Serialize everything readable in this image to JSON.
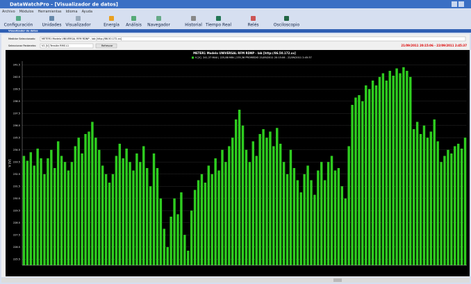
{
  "window": {
    "title": "DataWatchPro - [Visualizador de datos]",
    "menu": [
      "Archivo",
      "Módulos",
      "Herramientas",
      "Idioma",
      "Ayuda"
    ],
    "toolbar": [
      "Configuración",
      "Unidades",
      "Visualizador",
      "Energía",
      "Análisis",
      "Navegador",
      "Historial",
      "Tiempo Real",
      "Relés",
      "Osciloscopio"
    ]
  },
  "panel": {
    "title": "Visualizador de datos",
    "meter_label": "Medidor Seleccionado",
    "meter_value": "METER1 Modelo UNIVERSAL RFM RDNP - lab [http://86.50.172.xx]",
    "param_label": "Seleccionar Parámetro",
    "param_value": "V1 [V] Tensión RMS L1",
    "refresh": "Refrescar",
    "range": "21/09/2011 20:15:06 - 22/09/2011 2:45:37"
  },
  "chart_data": {
    "type": "bar",
    "title": "METER1 Modelo UNIVERSAL RFM RDNP - lab [http://86.50.172.xx]",
    "subtitle": "241,37 MAX | 225,88 MIN | 235,36 PROMEDIO 21/09/2011 20:15:06 - 22/09/2011 2:45:37",
    "ylabel": "V [V]",
    "series": [
      {
        "name": "V [V]",
        "color": "#2ecc1f",
        "values": [
          234.0,
          233.6,
          234.3,
          233.2,
          234.6,
          233.8,
          232.5,
          233.8,
          234.5,
          233.0,
          235.2,
          234.0,
          233.5,
          232.8,
          233.5,
          234.8,
          235.5,
          234.2,
          235.8,
          236.0,
          236.8,
          235.5,
          234.5,
          233.2,
          232.5,
          231.8,
          232.5,
          234.0,
          235.0,
          233.8,
          234.6,
          233.5,
          232.8,
          234.2,
          233.5,
          234.8,
          233.0,
          231.5,
          234.2,
          233.0,
          230.5,
          228.0,
          226.5,
          229.0,
          230.5,
          229.2,
          231.0,
          227.5,
          226.2,
          229.5,
          231.2,
          232.0,
          232.5,
          231.8,
          233.2,
          232.5,
          233.8,
          232.8,
          234.5,
          233.5,
          234.8,
          235.5,
          237.0,
          237.8,
          236.5,
          234.5,
          233.5,
          235.2,
          234.0,
          235.8,
          236.2,
          235.5,
          236.0,
          234.8,
          236.3,
          235.0,
          233.5,
          232.5,
          234.5,
          233.0,
          232.0,
          231.0,
          232.5,
          233.2,
          232.0,
          230.8,
          232.8,
          233.5,
          232.0,
          233.5,
          234.0,
          232.8,
          233.0,
          231.5,
          230.5,
          234.8,
          238.2,
          238.8,
          239.0,
          238.5,
          239.8,
          239.5,
          240.2,
          239.8,
          240.5,
          240.8,
          240.2,
          241.0,
          240.6,
          241.2,
          240.8,
          241.3,
          241.0,
          240.5,
          236.2,
          236.8,
          235.8,
          236.5,
          235.5,
          236.0,
          237.0,
          235.2,
          233.5,
          234.0,
          234.5,
          234.2,
          234.8,
          235.0,
          234.6,
          235.5
        ]
      }
    ],
    "ylim": [
      225,
      241.8
    ],
    "yticks": [
      225.5,
      226.5,
      227.5,
      228.5,
      229.5,
      230.5,
      231.5,
      232.5,
      233.5,
      234.5,
      235.5,
      236.5,
      237.5,
      238.5,
      239.5,
      240.5,
      241.5
    ],
    "grid": true
  }
}
